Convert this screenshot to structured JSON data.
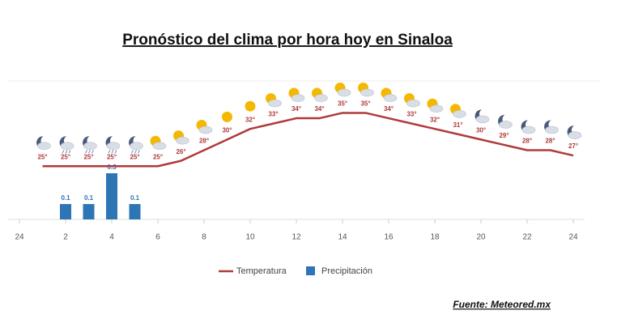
{
  "chart_data": {
    "type": "line-bar",
    "title": "Pronóstico del clima por hora hoy en Sinaloa",
    "source": "Fuente: Meteored.mx",
    "x": [
      1,
      2,
      3,
      4,
      5,
      6,
      7,
      8,
      9,
      10,
      11,
      12,
      13,
      14,
      15,
      16,
      17,
      18,
      19,
      20,
      21,
      22,
      23,
      24
    ],
    "xlim": [
      0,
      24
    ],
    "xticks": [
      {
        "value": 0,
        "label": "24"
      },
      2,
      4,
      6,
      8,
      10,
      12,
      14,
      16,
      18,
      20,
      22,
      24
    ],
    "ylim": [
      15,
      41
    ],
    "y2lim": [
      0,
      0.9
    ],
    "series": [
      {
        "name": "Temperatura",
        "color": "#b03a3a",
        "values": [
          25,
          25,
          25,
          25,
          25,
          25,
          26,
          28,
          30,
          32,
          33,
          34,
          34,
          35,
          35,
          34,
          33,
          32,
          31,
          30,
          29,
          28,
          28,
          27
        ],
        "value_labels": [
          "25°",
          "25°",
          "25°",
          "25°",
          "25°",
          "25°",
          "26°",
          "28°",
          "30°",
          "32°",
          "33°",
          "34°",
          "34°",
          "35°",
          "35°",
          "34°",
          "33°",
          "32°",
          "31°",
          "30°",
          "29°",
          "28°",
          "28°",
          "27°"
        ]
      },
      {
        "name": "Precipitación",
        "color": "#2e75b6",
        "axis": "y2",
        "x": [
          2,
          3,
          4,
          5
        ],
        "values": [
          0.1,
          0.1,
          0.3,
          0.1
        ]
      }
    ]
  }
}
